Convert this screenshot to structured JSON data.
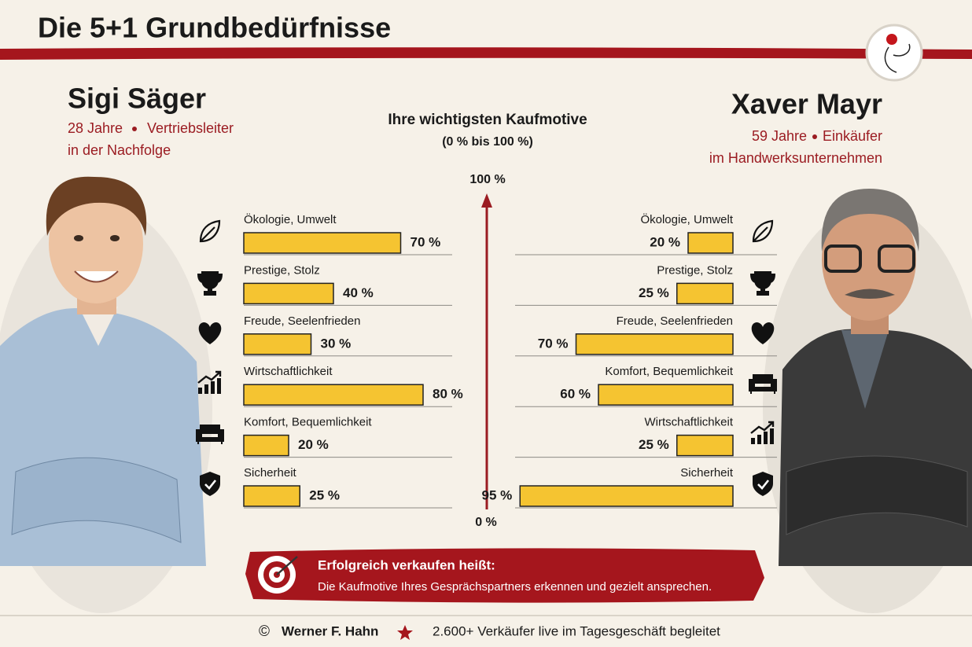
{
  "header": {
    "title": "Die 5+1 Grundbedürfnisse"
  },
  "left_person": {
    "name": "Sigi Säger",
    "age": "28 Jahre",
    "role": "Vertriebsleiter",
    "role_detail": "in der Nachfolge"
  },
  "right_person": {
    "name": "Xaver Mayr",
    "age": "59 Jahre",
    "role": "Einkäufer",
    "role_detail": "im Handwerksunternehmen"
  },
  "center": {
    "title": "Ihre wichtigsten Kaufmotive",
    "subtitle": "(0 % bis 100 %)",
    "axis_top": "100 %",
    "axis_bottom": "0 %"
  },
  "chart_data": [
    {
      "type": "bar",
      "orientation": "horizontal",
      "direction": "right",
      "categories": [
        "Ökologie, Umwelt",
        "Prestige, Stolz",
        "Freude, Seelenfrieden",
        "Wirtschaftlichkeit",
        "Komfort, Bequemlichkeit",
        "Sicherheit"
      ],
      "values": [
        70,
        40,
        30,
        80,
        20,
        25
      ],
      "value_labels": [
        "70 %",
        "40 %",
        "30 %",
        "80 %",
        "20 %",
        "25 %"
      ],
      "xlim": [
        0,
        100
      ],
      "color": "#f5c431"
    },
    {
      "type": "bar",
      "orientation": "horizontal",
      "direction": "left",
      "categories": [
        "Ökologie, Umwelt",
        "Prestige, Stolz",
        "Freude, Seelenfrieden",
        "Komfort, Bequemlichkeit",
        "Wirtschaftlichkeit",
        "Sicherheit"
      ],
      "values": [
        20,
        25,
        70,
        60,
        25,
        95
      ],
      "value_labels": [
        "20 %",
        "25 %",
        "70 %",
        "60 %",
        "25 %",
        "95 %"
      ],
      "xlim": [
        0,
        100
      ],
      "color": "#f5c431"
    }
  ],
  "callout": {
    "title": "Erfolgreich verkaufen heißt:",
    "text": "Die Kaufmotive Ihres Gesprächspartners erkennen und gezielt ansprechen."
  },
  "footer": {
    "copyright": "©",
    "author": "Werner F. Hahn",
    "claim": "2.600+ Verkäufer live im Tagesgeschäft begleitet"
  }
}
